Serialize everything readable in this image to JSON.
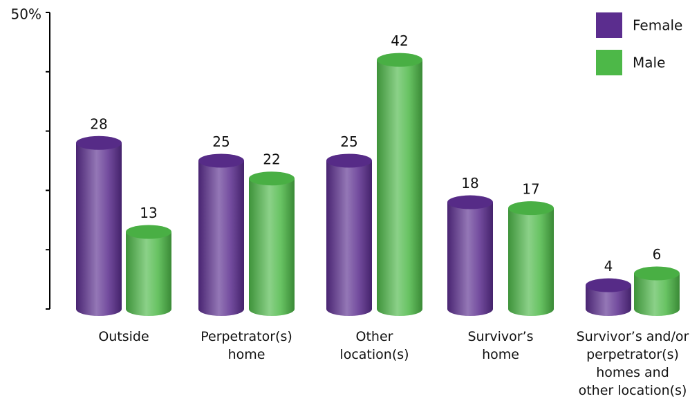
{
  "chart_data": {
    "type": "bar",
    "categories": [
      "Outside",
      "Perpetrator(s)\nhome",
      "Other\nlocation(s)",
      "Survivor’s\nhome",
      "Survivor’s and/or\nperpetrator(s)\nhomes and\nother location(s)"
    ],
    "series": [
      {
        "name": "Female",
        "color": "#5b2d8e",
        "values": [
          28,
          25,
          25,
          18,
          4
        ]
      },
      {
        "name": "Male",
        "color": "#4db848",
        "values": [
          13,
          22,
          42,
          17,
          6
        ]
      }
    ],
    "ylim": [
      0,
      50
    ],
    "yticks": [
      0,
      10,
      20,
      30,
      40,
      {
        "value": 50,
        "label": "50%"
      }
    ],
    "legend": "top-right"
  }
}
